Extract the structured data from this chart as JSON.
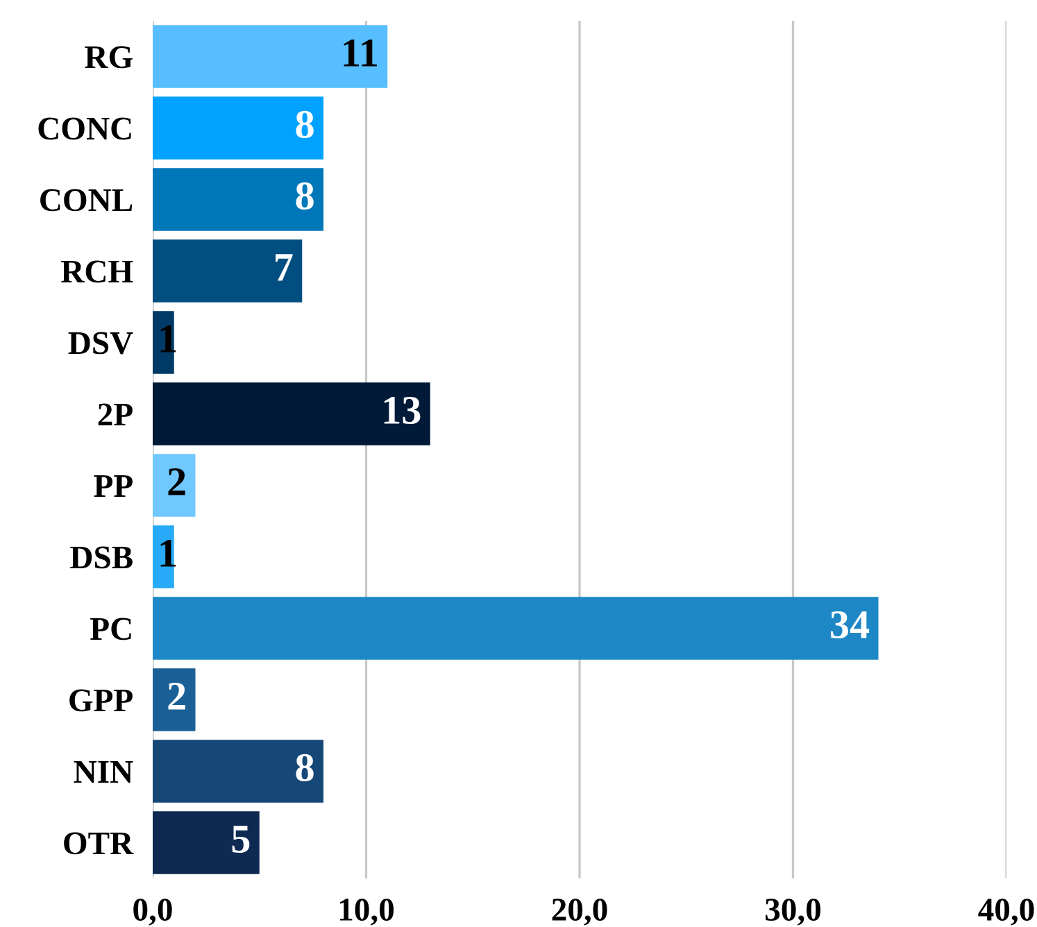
{
  "chart_data": {
    "type": "bar",
    "orientation": "horizontal",
    "categories": [
      "RG",
      "CONC",
      "CONL",
      "RCH",
      "DSV",
      "2P",
      "PP",
      "DSB",
      "PC",
      "GPP",
      "NIN",
      "OTR"
    ],
    "values": [
      11,
      8,
      8,
      7,
      1,
      13,
      2,
      1,
      34,
      2,
      8,
      5
    ],
    "colors": [
      "#57bfff",
      "#00a2ff",
      "#0077b8",
      "#004f80",
      "#003a66",
      "#001a38",
      "#70c8ff",
      "#27aaf7",
      "#1e88c6",
      "#1a6096",
      "#154777",
      "#0f2a52"
    ],
    "xlim": [
      0,
      40
    ],
    "xticks": [
      {
        "value": 0,
        "label": "0,0"
      },
      {
        "value": 10,
        "label": "10,0"
      },
      {
        "value": 20,
        "label": "20,0"
      },
      {
        "value": 30,
        "label": "30,0"
      },
      {
        "value": 40,
        "label": "40,0"
      }
    ],
    "grid": "x",
    "data_labels": true
  }
}
